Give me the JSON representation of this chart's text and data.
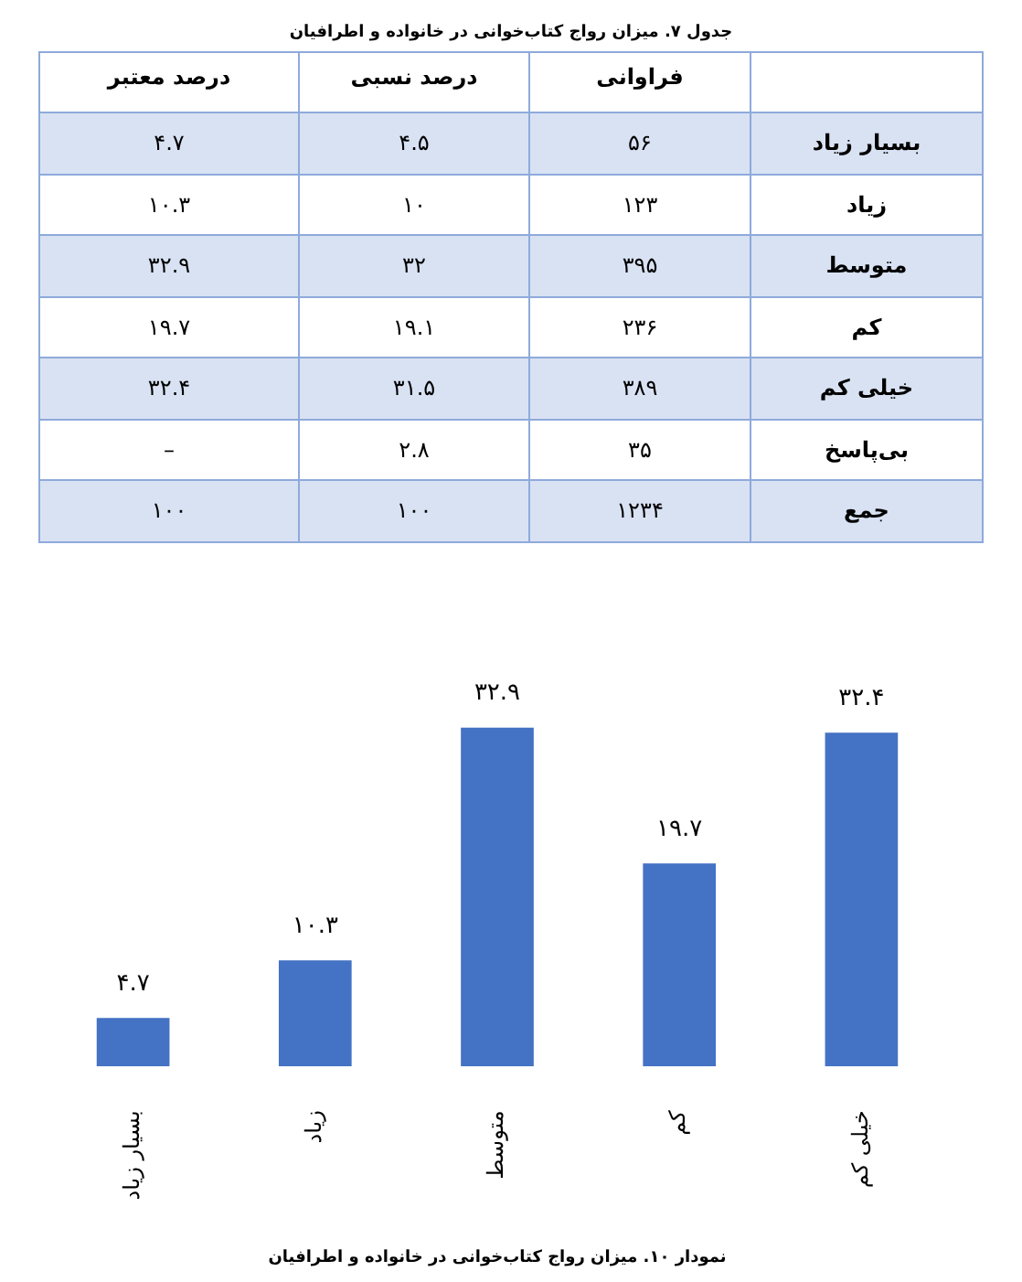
{
  "chart_data": [
    {
      "type": "other",
      "title": "جدول ۷. میزان رواج کتاب‌خوانی در خانواده و اطرافیان",
      "categories": [
        "بسیار زیاد",
        "زیاد",
        "متوسط",
        "کم",
        "خیلی کم",
        "بی‌پاسخ",
        "جمع"
      ],
      "series": [
        {
          "name": "فراوانی",
          "values": [
            56,
            123,
            395,
            236,
            389,
            35,
            1234
          ],
          "value_labels": [
            "۵۶",
            "۱۲۳",
            "۳۹۵",
            "۲۳۶",
            "۳۸۹",
            "۳۵",
            "۱۲۳۴"
          ],
          "colors": [
            "#d9e2f3",
            "#ffffff",
            "#d9e2f3",
            "#ffffff",
            "#d9e2f3",
            "#ffffff",
            "#d9e2f3"
          ]
        },
        {
          "name": "درصد نسبی",
          "values": [
            4.5,
            10,
            32,
            19.1,
            31.5,
            2.8,
            100
          ],
          "value_labels": [
            "۴.۵",
            "۱۰",
            "۳۲",
            "۱۹.۱",
            "۳۱.۵",
            "۲.۸",
            "۱۰۰"
          ],
          "colors": [
            "#d9e2f3",
            "#ffffff",
            "#d9e2f3",
            "#ffffff",
            "#d9e2f3",
            "#ffffff",
            "#d9e2f3"
          ]
        },
        {
          "name": "درصد معتبر",
          "values": [
            4.7,
            10.3,
            32.9,
            19.7,
            32.4,
            null,
            100
          ],
          "value_labels": [
            "۴.۷",
            "۱۰.۳",
            "۳۲.۹",
            "۱۹.۷",
            "۳۲.۴",
            "–",
            "۱۰۰"
          ],
          "colors": [
            "#d9e2f3",
            "#ffffff",
            "#d9e2f3",
            "#ffffff",
            "#d9e2f3",
            "#ffffff",
            "#d9e2f3"
          ]
        }
      ]
    },
    {
      "type": "bar",
      "title": "نمودار ۱۰. میزان رواج کتاب‌خوانی در خانواده و اطرافیان",
      "categories": [
        "بسیار زیاد",
        "زیاد",
        "متوسط",
        "کم",
        "خیلی کم"
      ],
      "values": [
        4.7,
        10.3,
        32.9,
        19.7,
        32.4
      ],
      "value_labels": [
        "۴.۷",
        "۱۰.۳",
        "۳۲.۹",
        "۱۹.۷",
        "۳۲.۴"
      ],
      "color": "#4472c4",
      "tick_labels": "x",
      "legend": false,
      "grid": false
    }
  ]
}
